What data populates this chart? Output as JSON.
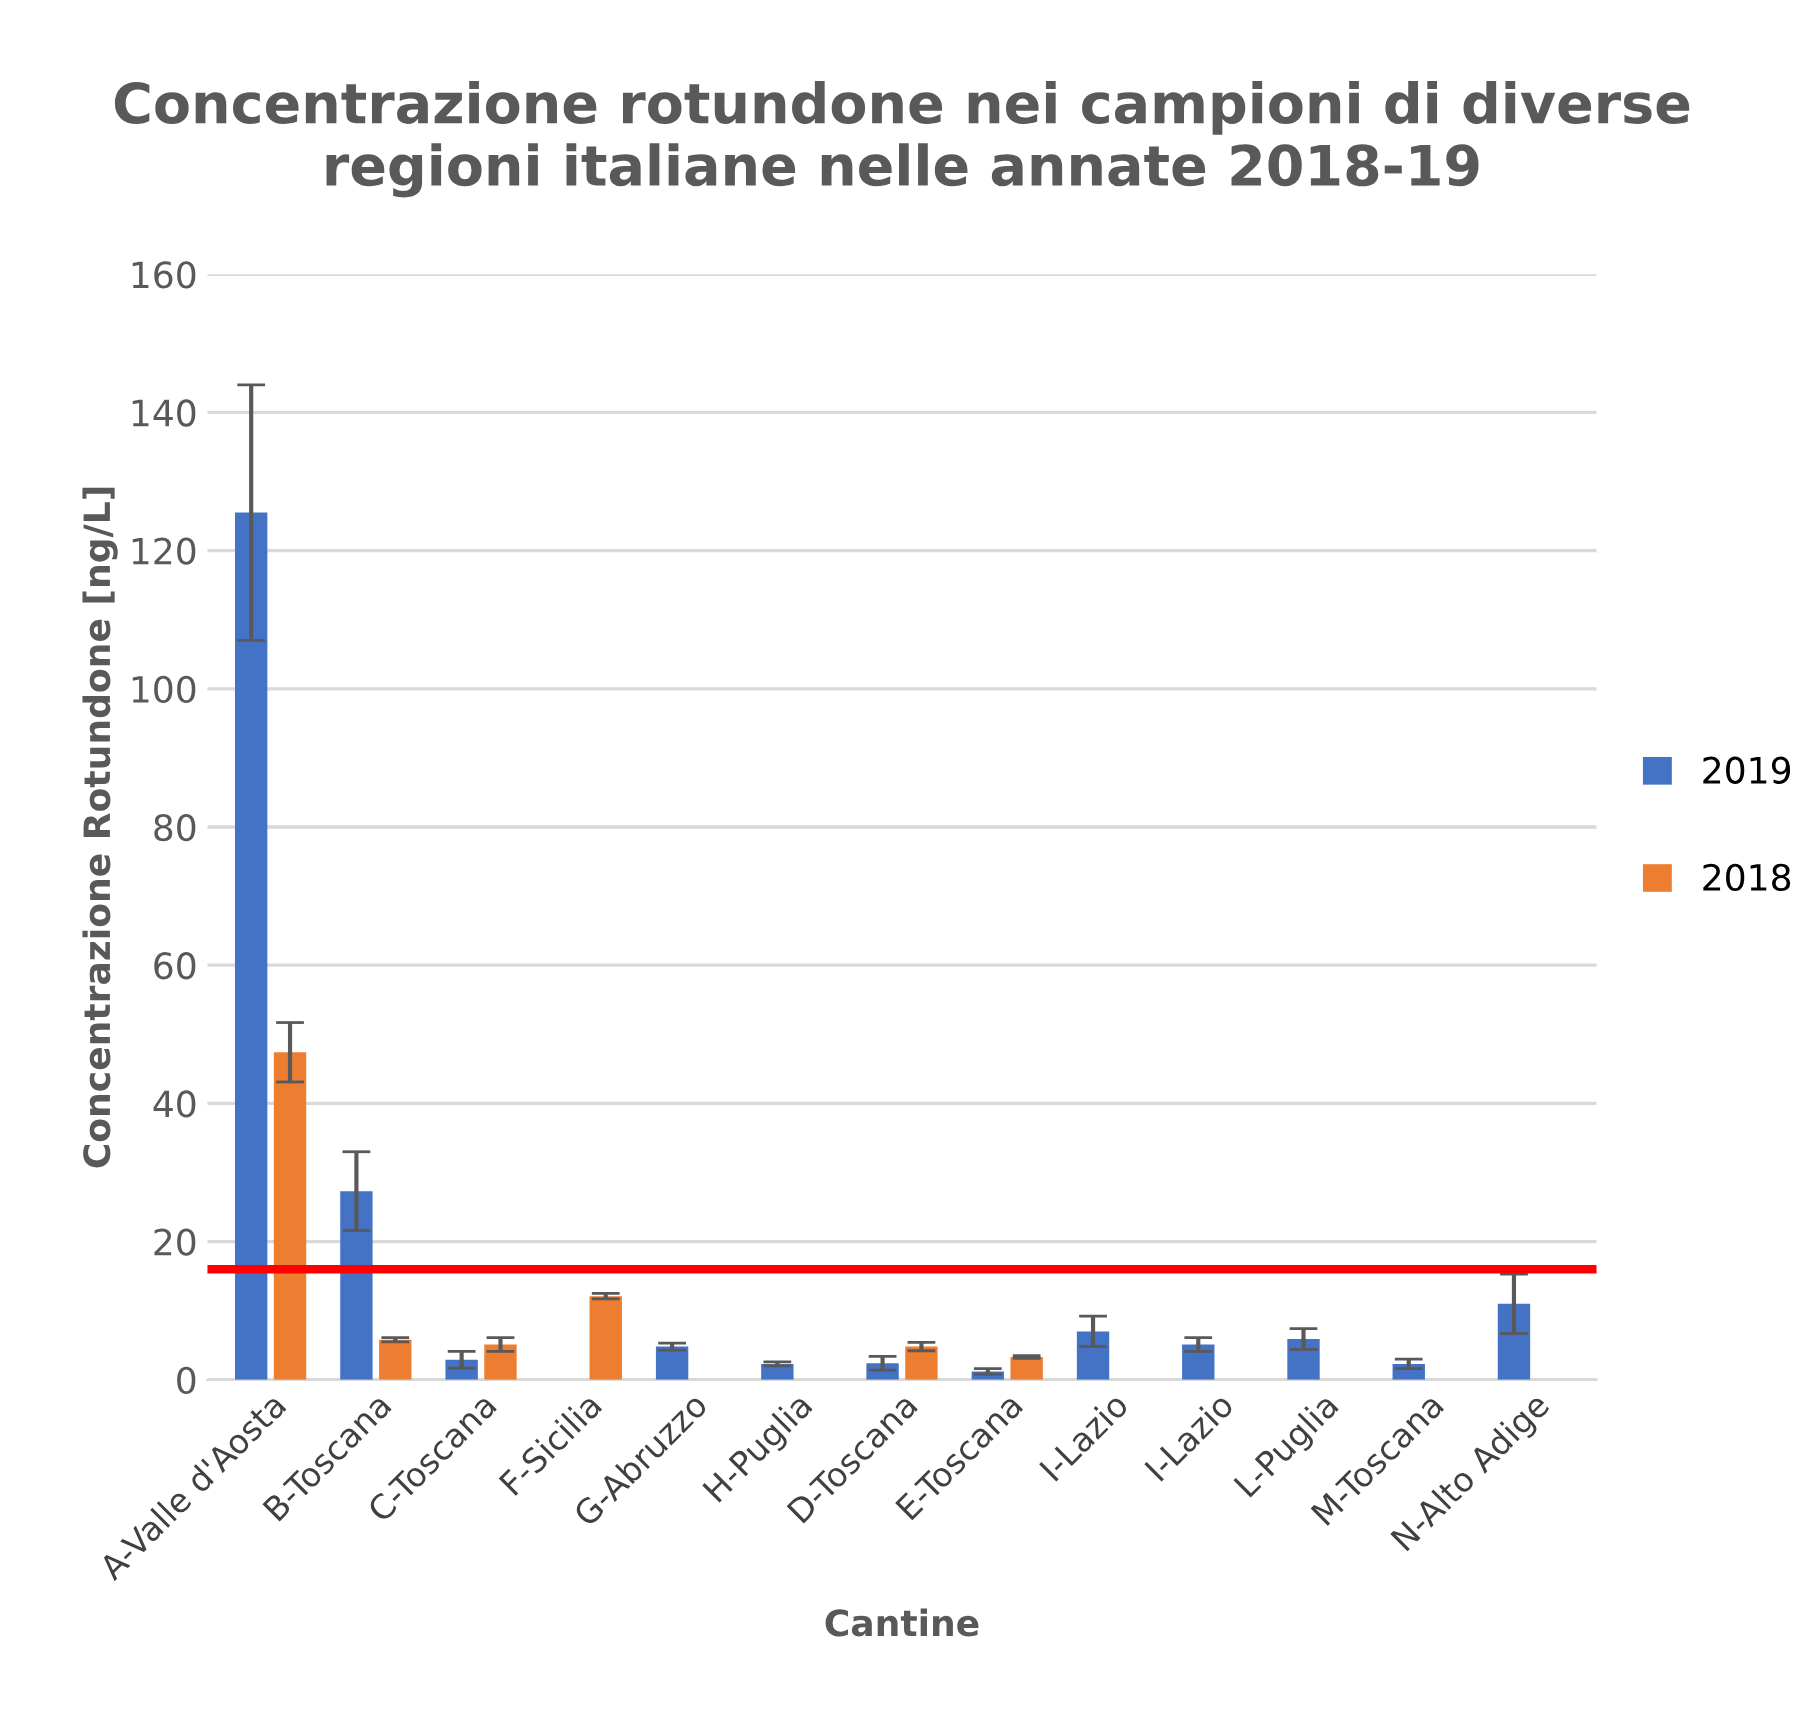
{
  "chart_data": {
    "type": "bar",
    "title": "Concentrazione rotundone nei campioni di diverse regioni italiane nelle annate 2018-19",
    "xlabel": "Cantine",
    "ylabel": "Concentrazione Rotundone [ng/L]",
    "categories": [
      "A-Valle d'Aosta",
      "B-Toscana",
      "C-Toscana",
      "F-Sicilia",
      "G-Abruzzo",
      "H-Puglia",
      "D-Toscana",
      "E-Toscana",
      "I-Lazio",
      "I-Lazio",
      "L-Puglia",
      "M-Toscana",
      "N-Alto Adige"
    ],
    "series": [
      {
        "name": "2019",
        "color": "#4472c4",
        "values": [
          125.5,
          27.3,
          2.9,
          0,
          4.8,
          2.3,
          2.4,
          1.2,
          7.0,
          5.1,
          5.9,
          2.3,
          11.0
        ],
        "errors": [
          18.5,
          5.7,
          1.2,
          null,
          0.5,
          0.3,
          1.0,
          0.4,
          2.2,
          1.0,
          1.5,
          0.7,
          4.3
        ]
      },
      {
        "name": "2018",
        "color": "#ed7d31",
        "values": [
          47.4,
          5.8,
          5.1,
          12.1,
          0,
          0,
          4.8,
          3.3,
          0,
          0,
          0,
          0,
          0
        ],
        "errors": [
          4.3,
          0.3,
          1.0,
          0.4,
          null,
          null,
          0.6,
          0.2,
          null,
          null,
          null,
          null,
          null
        ]
      }
    ],
    "ylim": [
      0,
      160
    ],
    "yticks": [
      0,
      20,
      40,
      60,
      80,
      100,
      120,
      140,
      160
    ],
    "grid": "y",
    "legend": "right",
    "ref_lines": [
      {
        "axis": "y",
        "value": 16,
        "color": "#ff0000",
        "line_style": "solid"
      }
    ]
  }
}
